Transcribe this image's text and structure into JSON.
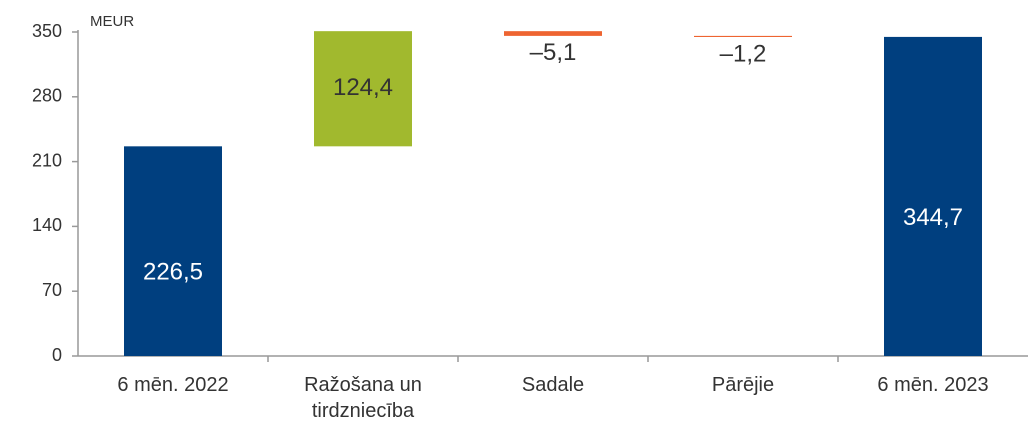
{
  "chart_data": {
    "type": "waterfall",
    "unit_label": "MEUR",
    "categories": [
      "6 mēn. 2022",
      "Ražošana un tirdzniecība",
      "Sadale",
      "Pārējie",
      "6 mēn. 2023"
    ],
    "values": [
      226.5,
      124.4,
      -5.1,
      -1.2,
      344.7
    ],
    "value_labels": [
      "226,5",
      "124,4",
      "–5,1",
      "–1,2",
      "344,7"
    ],
    "measure": [
      "absolute",
      "relative",
      "relative",
      "relative",
      "total"
    ],
    "colors": [
      "#003f7f",
      "#a1b92e",
      "#ee6431",
      "#ee6431",
      "#003f7f"
    ],
    "ylim": [
      0,
      350
    ],
    "yticks": [
      0,
      70,
      140,
      210,
      280,
      350
    ]
  }
}
